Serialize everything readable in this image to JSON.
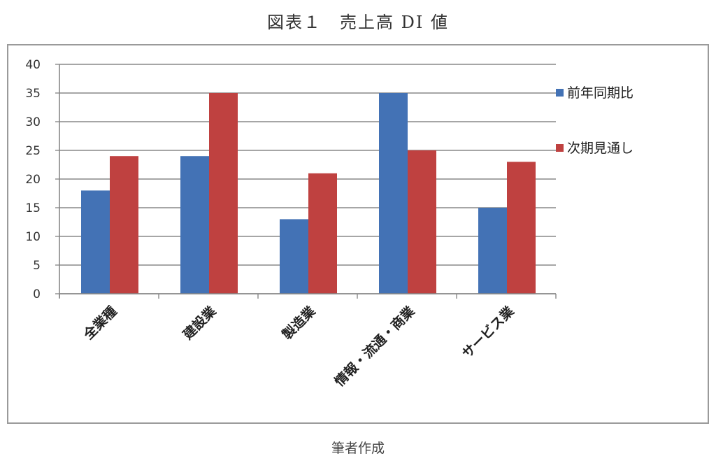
{
  "header": {
    "title": "図表１　売上高 DI 値"
  },
  "footer": {
    "caption": "筆者作成"
  },
  "colors": {
    "series1": "#4372b5",
    "series2": "#bf4140",
    "gridline": "#888888",
    "frame": "#9a9a9a"
  },
  "chart_data": {
    "type": "bar",
    "title": "図表１　売上高 DI 値",
    "xlabel": "",
    "ylabel": "",
    "ylim": [
      0,
      40
    ],
    "yticks": [
      0,
      5,
      10,
      15,
      20,
      25,
      30,
      35,
      40
    ],
    "grid": true,
    "legend_position": "right",
    "categories": [
      "全業種",
      "建設業",
      "製造業",
      "情報・流通・商業",
      "サービス業"
    ],
    "series": [
      {
        "name": "前年同期比",
        "color": "#4372b5",
        "values": [
          18,
          24,
          13,
          35,
          15
        ]
      },
      {
        "name": "次期見通し",
        "color": "#bf4140",
        "values": [
          24,
          35,
          21,
          25,
          23
        ]
      }
    ]
  }
}
